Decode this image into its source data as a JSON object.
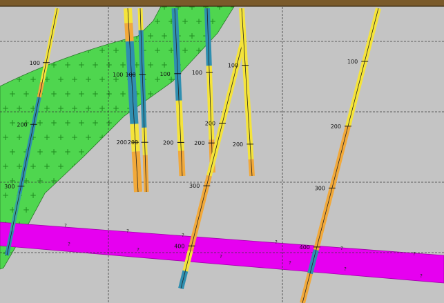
{
  "section": {
    "colors": {
      "background": "#c4c4c4",
      "grid_line": "#3a3a3a",
      "surface": "#7a5a2a",
      "intrusion_fill": "#4fd64f",
      "intrusion_symbol": "#1f8a1f",
      "vein_fill": "#e600f0",
      "trace_yellow": "#f5e43a",
      "trace_orange": "#f2a93a",
      "trace_blue": "#2f8fb0",
      "trace_teal": "#37a6a0"
    },
    "intrusion": {
      "name": "",
      "symbol": "+"
    },
    "vein": {
      "name": "",
      "symbol": "?"
    },
    "holes": [
      {
        "id": "hole-a",
        "depth_labels": [
          "100",
          "200",
          "300"
        ]
      },
      {
        "id": "hole-b",
        "depth_labels": [
          "100",
          "200"
        ]
      },
      {
        "id": "hole-c",
        "depth_labels": [
          "100",
          "200"
        ]
      },
      {
        "id": "hole-d",
        "depth_labels": [
          "100",
          "200"
        ]
      },
      {
        "id": "hole-e",
        "depth_labels": [
          "100",
          "200"
        ]
      },
      {
        "id": "hole-f",
        "depth_labels": [
          "200",
          "300",
          "400"
        ]
      },
      {
        "id": "hole-g",
        "depth_labels": [
          "100",
          "200"
        ]
      },
      {
        "id": "hole-h",
        "depth_labels": [
          "100",
          "200",
          "300",
          "400"
        ]
      }
    ]
  }
}
